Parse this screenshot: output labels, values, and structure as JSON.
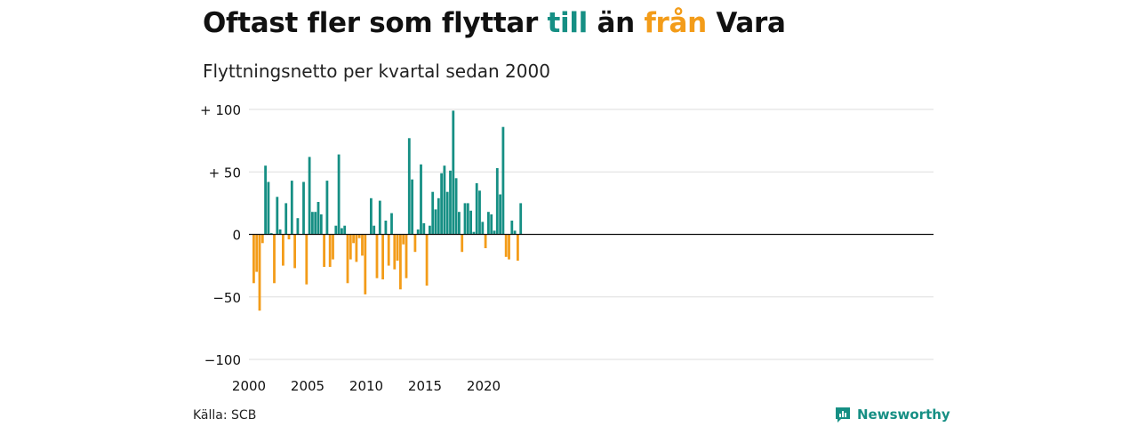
{
  "title": {
    "part1": "Oftast fler som flyttar ",
    "till": "till",
    "part2": " än ",
    "fran": "från",
    "part3": " Vara"
  },
  "subtitle": "Flyttningsnetto per kvartal sedan 2000",
  "source": "Källa: SCB",
  "brand": "Newsworthy",
  "colors": {
    "positive": "#168f84",
    "negative": "#f39c19",
    "grid": "#dddddd",
    "axis": "#111111"
  },
  "chart_data": {
    "type": "bar",
    "x_unit": "quarter",
    "start": "2000 Q1",
    "ylim": [
      -100,
      100
    ],
    "yticks": [
      100,
      50,
      0,
      -50,
      -100
    ],
    "ytick_labels": [
      "+ 100",
      "+  50",
      "0",
      "−50",
      "−100"
    ],
    "xticks": [
      "2000",
      "2005",
      "2010",
      "2015",
      "2020"
    ],
    "grid": true,
    "values": [
      -39,
      -30,
      -61,
      -7,
      55,
      42,
      1,
      -39,
      30,
      4,
      -25,
      25,
      -4,
      43,
      -27,
      13,
      0,
      42,
      -40,
      62,
      18,
      18,
      26,
      16,
      -26,
      43,
      -26,
      -20,
      7,
      64,
      5,
      7,
      -39,
      -20,
      -7,
      -22,
      -3,
      -17,
      -48,
      0,
      29,
      7,
      -35,
      27,
      -36,
      11,
      -25,
      17,
      -28,
      -21,
      -44,
      -8,
      -35,
      77,
      44,
      -14,
      4,
      56,
      9,
      -41,
      7,
      34,
      20,
      29,
      49,
      55,
      34,
      51,
      99,
      45,
      18,
      -14,
      25,
      25,
      19,
      2,
      41,
      35,
      10,
      -11,
      18,
      16,
      3,
      53,
      32,
      86,
      -18,
      -20,
      11,
      3,
      -21,
      25
    ]
  }
}
